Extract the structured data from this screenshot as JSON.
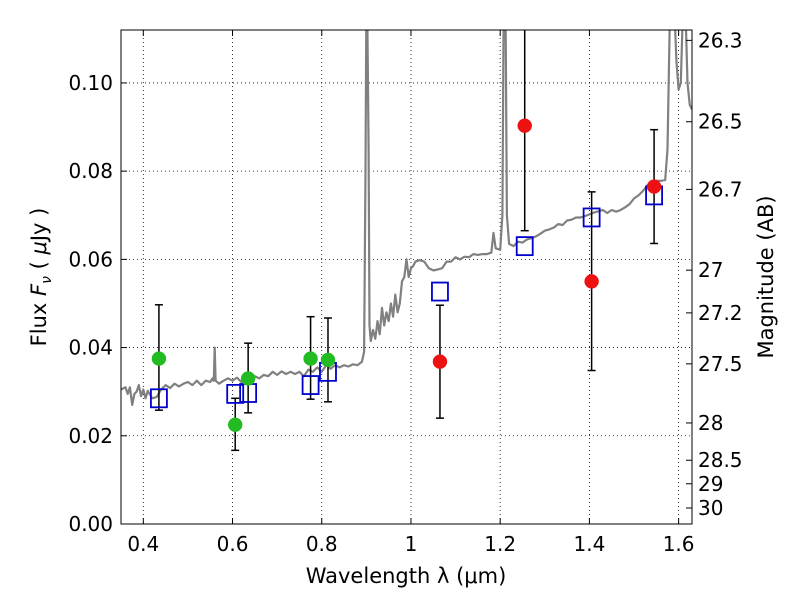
{
  "chart_data": {
    "type": "scatter",
    "xlabel": "Wavelength  λ (μm)",
    "ylabel_parts": {
      "prefix": "Flux ",
      "symbol": "F",
      "subscript": "ν",
      "open": " ( ",
      "unit_symbol": "μ",
      "unit_rest": "Jy )"
    },
    "ylabel_right": "Magnitude (AB)",
    "xlim": [
      0.35,
      1.63
    ],
    "ylim": [
      0.0,
      0.112
    ],
    "x_ticks": [
      0.4,
      0.6,
      0.8,
      1.0,
      1.2,
      1.4,
      1.6
    ],
    "x_tick_labels": [
      "0.4",
      "0.6",
      "0.8",
      "1",
      "1.2",
      "1.4",
      "1.6"
    ],
    "y_ticks": [
      0.0,
      0.02,
      0.04,
      0.06,
      0.08,
      0.1
    ],
    "y_tick_labels": [
      "0.00",
      "0.02",
      "0.04",
      "0.06",
      "0.08",
      "0.10"
    ],
    "right_ticks": [
      {
        "label": "26.3",
        "mag": 26.3
      },
      {
        "label": "26.5",
        "mag": 26.5
      },
      {
        "label": "26.7",
        "mag": 26.7
      },
      {
        "label": "27",
        "mag": 27.0
      },
      {
        "label": "27.2",
        "mag": 27.2
      },
      {
        "label": "27.5",
        "mag": 27.5
      },
      {
        "label": "28",
        "mag": 28.0
      },
      {
        "label": "28.5",
        "mag": 28.5
      },
      {
        "label": "29",
        "mag": 29.0
      },
      {
        "label": "30",
        "mag": 30.0
      }
    ],
    "grid": true,
    "colors": {
      "green": "#22bb22",
      "red": "#ee1111",
      "blue": "#0000cc",
      "model": "#808080"
    },
    "series": [
      {
        "marker": "circle-green",
        "points": [
          {
            "x": 0.435,
            "y": 0.0375,
            "ylo": 0.0258,
            "yhi": 0.0497
          },
          {
            "x": 0.606,
            "y": 0.0225,
            "ylo": 0.0167,
            "yhi": 0.0285
          },
          {
            "x": 0.635,
            "y": 0.033,
            "ylo": 0.0252,
            "yhi": 0.041
          },
          {
            "x": 0.775,
            "y": 0.0375,
            "ylo": 0.0283,
            "yhi": 0.047
          },
          {
            "x": 0.814,
            "y": 0.0372,
            "ylo": 0.0277,
            "yhi": 0.0467
          }
        ]
      },
      {
        "marker": "circle-red",
        "points": [
          {
            "x": 1.065,
            "y": 0.0368,
            "ylo": 0.024,
            "yhi": 0.0496
          },
          {
            "x": 1.255,
            "y": 0.0903,
            "ylo": 0.0665,
            "yhi": 0.113
          },
          {
            "x": 1.405,
            "y": 0.055,
            "ylo": 0.0348,
            "yhi": 0.0753
          },
          {
            "x": 1.545,
            "y": 0.0765,
            "ylo": 0.0636,
            "yhi": 0.0894
          }
        ]
      },
      {
        "marker": "square-blue",
        "points": [
          {
            "x": 0.435,
            "y": 0.0285
          },
          {
            "x": 0.606,
            "y": 0.0295
          },
          {
            "x": 0.635,
            "y": 0.0297
          },
          {
            "x": 0.775,
            "y": 0.0315
          },
          {
            "x": 0.814,
            "y": 0.0345
          },
          {
            "x": 1.065,
            "y": 0.0527
          },
          {
            "x": 1.255,
            "y": 0.063
          },
          {
            "x": 1.405,
            "y": 0.0695
          },
          {
            "x": 1.545,
            "y": 0.0745
          }
        ]
      }
    ],
    "model_spectrum": [
      [
        0.35,
        0.0305
      ],
      [
        0.36,
        0.031
      ],
      [
        0.365,
        0.0295
      ],
      [
        0.37,
        0.031
      ],
      [
        0.375,
        0.027
      ],
      [
        0.38,
        0.0295
      ],
      [
        0.385,
        0.03
      ],
      [
        0.39,
        0.0315
      ],
      [
        0.395,
        0.029
      ],
      [
        0.4,
        0.0305
      ],
      [
        0.405,
        0.0285
      ],
      [
        0.41,
        0.0302
      ],
      [
        0.42,
        0.0285
      ],
      [
        0.43,
        0.0288
      ],
      [
        0.44,
        0.0305
      ],
      [
        0.45,
        0.0315
      ],
      [
        0.46,
        0.0308
      ],
      [
        0.47,
        0.0318
      ],
      [
        0.48,
        0.0312
      ],
      [
        0.49,
        0.0318
      ],
      [
        0.5,
        0.0322
      ],
      [
        0.51,
        0.0315
      ],
      [
        0.52,
        0.0325
      ],
      [
        0.53,
        0.0315
      ],
      [
        0.54,
        0.0325
      ],
      [
        0.55,
        0.0322
      ],
      [
        0.555,
        0.033
      ],
      [
        0.557,
        0.0325
      ],
      [
        0.558,
        0.0325
      ],
      [
        0.56,
        0.04
      ],
      [
        0.562,
        0.0325
      ],
      [
        0.57,
        0.0318
      ],
      [
        0.58,
        0.0325
      ],
      [
        0.59,
        0.033
      ],
      [
        0.6,
        0.0325
      ],
      [
        0.61,
        0.0332
      ],
      [
        0.62,
        0.0322
      ],
      [
        0.63,
        0.0335
      ],
      [
        0.64,
        0.0325
      ],
      [
        0.65,
        0.0335
      ],
      [
        0.66,
        0.033
      ],
      [
        0.67,
        0.0338
      ],
      [
        0.68,
        0.0335
      ],
      [
        0.69,
        0.0345
      ],
      [
        0.7,
        0.0338
      ],
      [
        0.71,
        0.0346
      ],
      [
        0.72,
        0.034
      ],
      [
        0.73,
        0.0345
      ],
      [
        0.74,
        0.034
      ],
      [
        0.75,
        0.0345
      ],
      [
        0.76,
        0.0335
      ],
      [
        0.77,
        0.035
      ],
      [
        0.78,
        0.0345
      ],
      [
        0.79,
        0.0355
      ],
      [
        0.8,
        0.0345
      ],
      [
        0.81,
        0.036
      ],
      [
        0.82,
        0.0352
      ],
      [
        0.83,
        0.036
      ],
      [
        0.84,
        0.0355
      ],
      [
        0.85,
        0.036
      ],
      [
        0.86,
        0.0357
      ],
      [
        0.87,
        0.0362
      ],
      [
        0.88,
        0.036
      ],
      [
        0.89,
        0.0368
      ],
      [
        0.895,
        0.039
      ],
      [
        0.898,
        0.08
      ],
      [
        0.9,
        0.118
      ],
      [
        0.902,
        0.118
      ],
      [
        0.905,
        0.085
      ],
      [
        0.907,
        0.045
      ],
      [
        0.91,
        0.0415
      ],
      [
        0.915,
        0.044
      ],
      [
        0.92,
        0.042
      ],
      [
        0.925,
        0.046
      ],
      [
        0.93,
        0.043
      ],
      [
        0.935,
        0.049
      ],
      [
        0.94,
        0.045
      ],
      [
        0.945,
        0.048
      ],
      [
        0.95,
        0.046
      ],
      [
        0.955,
        0.05
      ],
      [
        0.96,
        0.047
      ],
      [
        0.965,
        0.052
      ],
      [
        0.97,
        0.048
      ],
      [
        0.975,
        0.05
      ],
      [
        0.98,
        0.055
      ],
      [
        0.985,
        0.056
      ],
      [
        0.99,
        0.06
      ],
      [
        0.995,
        0.056
      ],
      [
        1.0,
        0.058
      ],
      [
        1.005,
        0.0585
      ],
      [
        1.01,
        0.0595
      ],
      [
        1.02,
        0.0598
      ],
      [
        1.03,
        0.0595
      ],
      [
        1.04,
        0.058
      ],
      [
        1.05,
        0.0575
      ],
      [
        1.06,
        0.0577
      ],
      [
        1.07,
        0.058
      ],
      [
        1.08,
        0.0595
      ],
      [
        1.09,
        0.0595
      ],
      [
        1.1,
        0.0605
      ],
      [
        1.11,
        0.06
      ],
      [
        1.12,
        0.0606
      ],
      [
        1.13,
        0.0605
      ],
      [
        1.14,
        0.0612
      ],
      [
        1.15,
        0.061
      ],
      [
        1.16,
        0.0612
      ],
      [
        1.17,
        0.0612
      ],
      [
        1.18,
        0.0615
      ],
      [
        1.185,
        0.066
      ],
      [
        1.19,
        0.0625
      ],
      [
        1.2,
        0.0622
      ],
      [
        1.205,
        0.07
      ],
      [
        1.208,
        0.118
      ],
      [
        1.212,
        0.118
      ],
      [
        1.215,
        0.07
      ],
      [
        1.22,
        0.0635
      ],
      [
        1.23,
        0.063
      ],
      [
        1.24,
        0.064
      ],
      [
        1.25,
        0.0638
      ],
      [
        1.26,
        0.0645
      ],
      [
        1.27,
        0.0648
      ],
      [
        1.28,
        0.0652
      ],
      [
        1.29,
        0.0658
      ],
      [
        1.3,
        0.0665
      ],
      [
        1.31,
        0.0668
      ],
      [
        1.32,
        0.0672
      ],
      [
        1.33,
        0.068
      ],
      [
        1.34,
        0.0678
      ],
      [
        1.35,
        0.0688
      ],
      [
        1.36,
        0.069
      ],
      [
        1.37,
        0.0695
      ],
      [
        1.38,
        0.0695
      ],
      [
        1.39,
        0.0698
      ],
      [
        1.4,
        0.0702
      ],
      [
        1.41,
        0.0706
      ],
      [
        1.42,
        0.0709
      ],
      [
        1.43,
        0.0712
      ],
      [
        1.44,
        0.0705
      ],
      [
        1.45,
        0.0712
      ],
      [
        1.46,
        0.0708
      ],
      [
        1.47,
        0.0712
      ],
      [
        1.48,
        0.0718
      ],
      [
        1.49,
        0.0725
      ],
      [
        1.5,
        0.0738
      ],
      [
        1.51,
        0.0745
      ],
      [
        1.52,
        0.0755
      ],
      [
        1.53,
        0.0768
      ],
      [
        1.54,
        0.0775
      ],
      [
        1.55,
        0.0778
      ],
      [
        1.56,
        0.0778
      ],
      [
        1.57,
        0.078
      ],
      [
        1.575,
        0.085
      ],
      [
        1.58,
        0.113
      ],
      [
        1.585,
        0.118
      ],
      [
        1.59,
        0.118
      ],
      [
        1.595,
        0.105
      ],
      [
        1.6,
        0.0985
      ],
      [
        1.605,
        0.1
      ],
      [
        1.61,
        0.118
      ],
      [
        1.615,
        0.118
      ],
      [
        1.62,
        0.1
      ],
      [
        1.625,
        0.095
      ],
      [
        1.63,
        0.094
      ]
    ]
  }
}
